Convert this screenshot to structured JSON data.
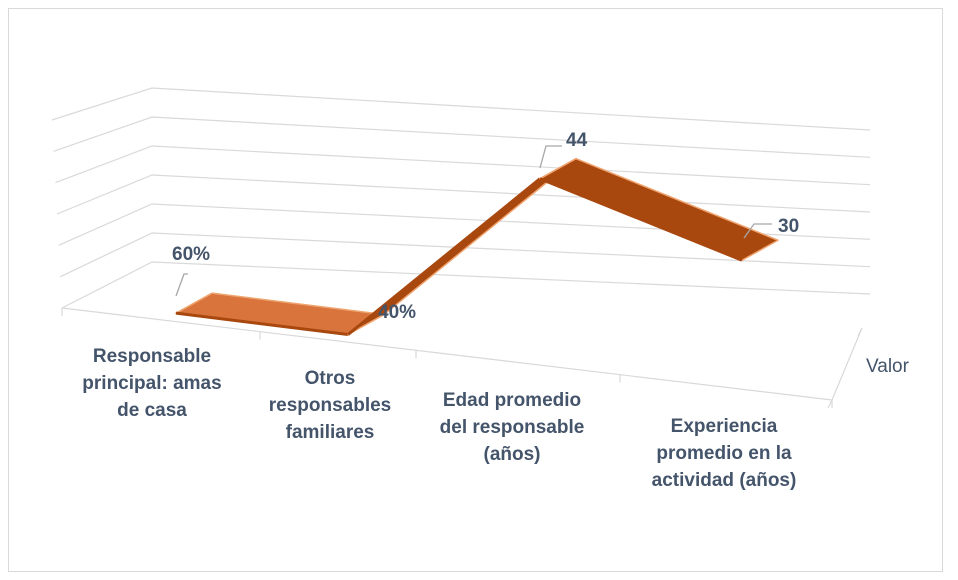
{
  "chart_data": {
    "type": "line",
    "title": "",
    "xlabel": "",
    "ylabel": "",
    "grid": true,
    "three_d": true,
    "colors": {
      "ribbon_top": "#d8743c",
      "ribbon_edge": "#a8480f",
      "ribbon_highlight": "#f0a36e",
      "grid": "#d9d9d9",
      "text": "#44546a"
    },
    "categories": [
      [
        "Responsable",
        "principal: amas",
        "de casa"
      ],
      [
        "Otros",
        "responsables",
        "familiares"
      ],
      [
        "Edad promedio",
        "del responsable",
        "(años)"
      ],
      [
        "Experiencia",
        "promedio en la",
        "actividad (años)"
      ]
    ],
    "series": [
      {
        "name": "Valor",
        "values": [
          0.6,
          0.4,
          44,
          30
        ],
        "labels": [
          "60%",
          "40%",
          "44",
          "30"
        ]
      }
    ]
  }
}
